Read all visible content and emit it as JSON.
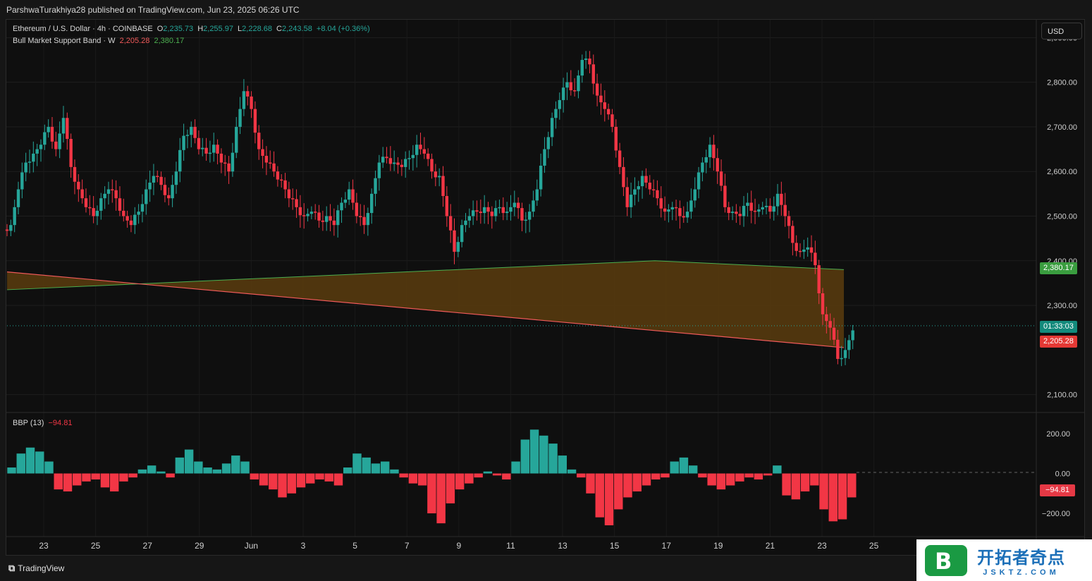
{
  "header": {
    "published": "ParshwaTurakhiya28 published on TradingView.com, Jun 23, 2025 06:26 UTC"
  },
  "legend": {
    "symbol": "Ethereum / U.S. Dollar · 4h · COINBASE",
    "o_label": "O",
    "o": "2,235.73",
    "h_label": "H",
    "h": "2,255.97",
    "l_label": "L",
    "l": "2,228.68",
    "c_label": "C",
    "c": "2,243.58",
    "change": "+8.04 (+0.36%)",
    "band_name": "Bull Market Support Band · W",
    "band_low": "2,205.28",
    "band_high": "2,380.17",
    "bbp_name": "BBP (13)",
    "bbp_value": "−94.81"
  },
  "currency_button": "USD",
  "price_axis": [
    "2,900.00",
    "2,800.00",
    "2,700.00",
    "2,600.00",
    "2,500.00",
    "2,400.00",
    "2,300.00",
    "2,100.00"
  ],
  "price_tags": {
    "band_high": "2,380.17",
    "countdown": "01:33:03",
    "band_low": "2,205.28"
  },
  "bbp_axis": [
    "200.00",
    "0.00",
    "−200.00"
  ],
  "bbp_tag": "−94.81",
  "time_axis": [
    "23",
    "25",
    "27",
    "29",
    "Jun",
    "3",
    "5",
    "7",
    "9",
    "11",
    "13",
    "15",
    "17",
    "19",
    "21",
    "23",
    "25"
  ],
  "footer": {
    "brand": "TradingView"
  },
  "watermark": {
    "cn": "开拓者奇点",
    "en": "JSKTZ.COM",
    "logo_letter": "B"
  },
  "colors": {
    "up": "#26a69a",
    "down": "#f23645",
    "band_fill": "#5a3c0e",
    "band_green": "#4caf50",
    "band_red": "#f05a5a"
  },
  "chart_data": {
    "type": "candlestick",
    "title": "Ethereum / U.S. Dollar · 4h · COINBASE",
    "ylim": [
      2060,
      2940
    ],
    "x_ticks": [
      "23",
      "25",
      "27",
      "29",
      "Jun",
      "3",
      "5",
      "7",
      "9",
      "11",
      "13",
      "15",
      "17",
      "19",
      "21",
      "23",
      "25"
    ],
    "closes": [
      2480,
      2560,
      2620,
      2640,
      2660,
      2700,
      2650,
      2720,
      2610,
      2560,
      2520,
      2500,
      2540,
      2560,
      2540,
      2500,
      2480,
      2510,
      2560,
      2590,
      2570,
      2540,
      2600,
      2680,
      2700,
      2650,
      2640,
      2660,
      2620,
      2600,
      2700,
      2780,
      2740,
      2650,
      2620,
      2600,
      2580,
      2540,
      2520,
      2500,
      2510,
      2490,
      2500,
      2480,
      2530,
      2560,
      2500,
      2480,
      2550,
      2620,
      2630,
      2620,
      2610,
      2630,
      2660,
      2640,
      2600,
      2590,
      2500,
      2420,
      2480,
      2500,
      2510,
      2520,
      2500,
      2520,
      2510,
      2530,
      2490,
      2510,
      2560,
      2650,
      2720,
      2760,
      2800,
      2780,
      2850,
      2840,
      2770,
      2740,
      2700,
      2610,
      2520,
      2560,
      2590,
      2560,
      2540,
      2510,
      2520,
      2500,
      2510,
      2560,
      2620,
      2660,
      2600,
      2520,
      2510,
      2500,
      2530,
      2510,
      2520,
      2510,
      2550,
      2500,
      2440,
      2420,
      2430,
      2390,
      2280,
      2250,
      2180,
      2200,
      2244
    ],
    "band": {
      "name": "Bull Market Support Band · W",
      "green_line": [
        [
          0,
          2335
        ],
        [
          0.75,
          2400
        ],
        [
          0.969,
          2380.17
        ]
      ],
      "red_line": [
        [
          0,
          2375
        ],
        [
          0.969,
          2205.28
        ]
      ]
    },
    "bbp": {
      "name": "BBP (13)",
      "last": -94.81,
      "ylim": [
        -260,
        260
      ],
      "values": [
        30,
        100,
        130,
        110,
        60,
        -80,
        -90,
        -60,
        -40,
        -30,
        -70,
        -90,
        -40,
        -20,
        20,
        40,
        10,
        -20,
        80,
        120,
        60,
        30,
        20,
        50,
        90,
        60,
        -30,
        -60,
        -80,
        -120,
        -100,
        -70,
        -50,
        -30,
        -40,
        -60,
        30,
        100,
        80,
        50,
        60,
        20,
        -20,
        -50,
        -60,
        -200,
        -250,
        -150,
        -80,
        -50,
        -20,
        10,
        -10,
        -30,
        60,
        170,
        220,
        190,
        150,
        90,
        20,
        -20,
        -100,
        -220,
        -260,
        -180,
        -120,
        -90,
        -60,
        -30,
        -20,
        60,
        80,
        40,
        -20,
        -60,
        -80,
        -60,
        -40,
        -20,
        -30,
        -10,
        40,
        -110,
        -130,
        -90,
        -60,
        -180,
        -240,
        -230,
        -120
      ]
    }
  }
}
